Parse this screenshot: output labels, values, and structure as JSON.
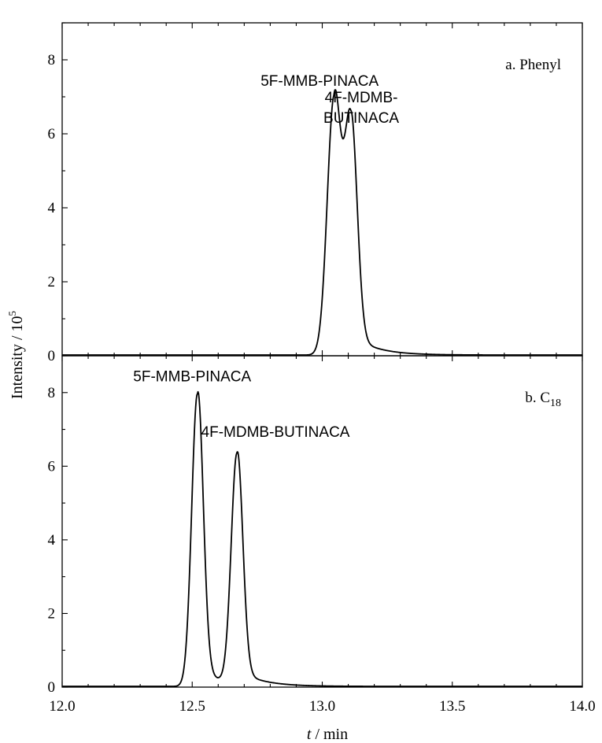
{
  "chart_data": {
    "type": "line",
    "xlabel_italic": "t",
    "xlabel_rest": " / min",
    "ylabel_base": "Intensity / 10",
    "ylabel_exp": "5",
    "xlim": [
      12.0,
      14.0
    ],
    "x_ticks": [
      "12.0",
      "12.5",
      "13.0",
      "13.5",
      "14.0"
    ],
    "x_tick_values": [
      12.0,
      12.5,
      13.0,
      13.5,
      14.0
    ],
    "panels": [
      {
        "label": "a. Phenyl",
        "label_sub": "",
        "ylim": [
          0,
          9
        ],
        "y_ticks": [
          "0",
          "2",
          "4",
          "6",
          "8"
        ],
        "y_tick_values": [
          0,
          2,
          4,
          6,
          8
        ],
        "peaks": [
          {
            "name": "5F-MMB-PINACA",
            "rt": 13.045,
            "height": 6.88,
            "width": 0.026
          },
          {
            "name": "4F-MDMB-BUTINACA",
            "rt": 13.11,
            "height": 6.1,
            "width": 0.024
          }
        ],
        "annotations": [
          {
            "text": "5F-MMB-PINACA",
            "x": 12.99,
            "y": 7.3
          },
          {
            "text": "4F-MDMB-",
            "x": 13.15,
            "y": 6.85
          },
          {
            "text": "BUTINACA",
            "x": 13.15,
            "y": 6.3
          }
        ]
      },
      {
        "label": "b. C",
        "label_sub": "18",
        "ylim": [
          0,
          9
        ],
        "y_ticks": [
          "0",
          "2",
          "4",
          "6",
          "8"
        ],
        "y_tick_values": [
          0,
          2,
          4,
          6,
          8
        ],
        "peaks": [
          {
            "name": "5F-MMB-PINACA",
            "rt": 12.52,
            "height": 7.95,
            "width": 0.022
          },
          {
            "name": "4F-MDMB-BUTINACA",
            "rt": 12.672,
            "height": 6.25,
            "width": 0.022
          }
        ],
        "annotations": [
          {
            "text": "5F-MMB-PINACA",
            "x": 12.5,
            "y": 8.3
          },
          {
            "text": "4F-MDMB-BUTINACA",
            "x": 12.82,
            "y": 6.8
          }
        ]
      }
    ]
  }
}
